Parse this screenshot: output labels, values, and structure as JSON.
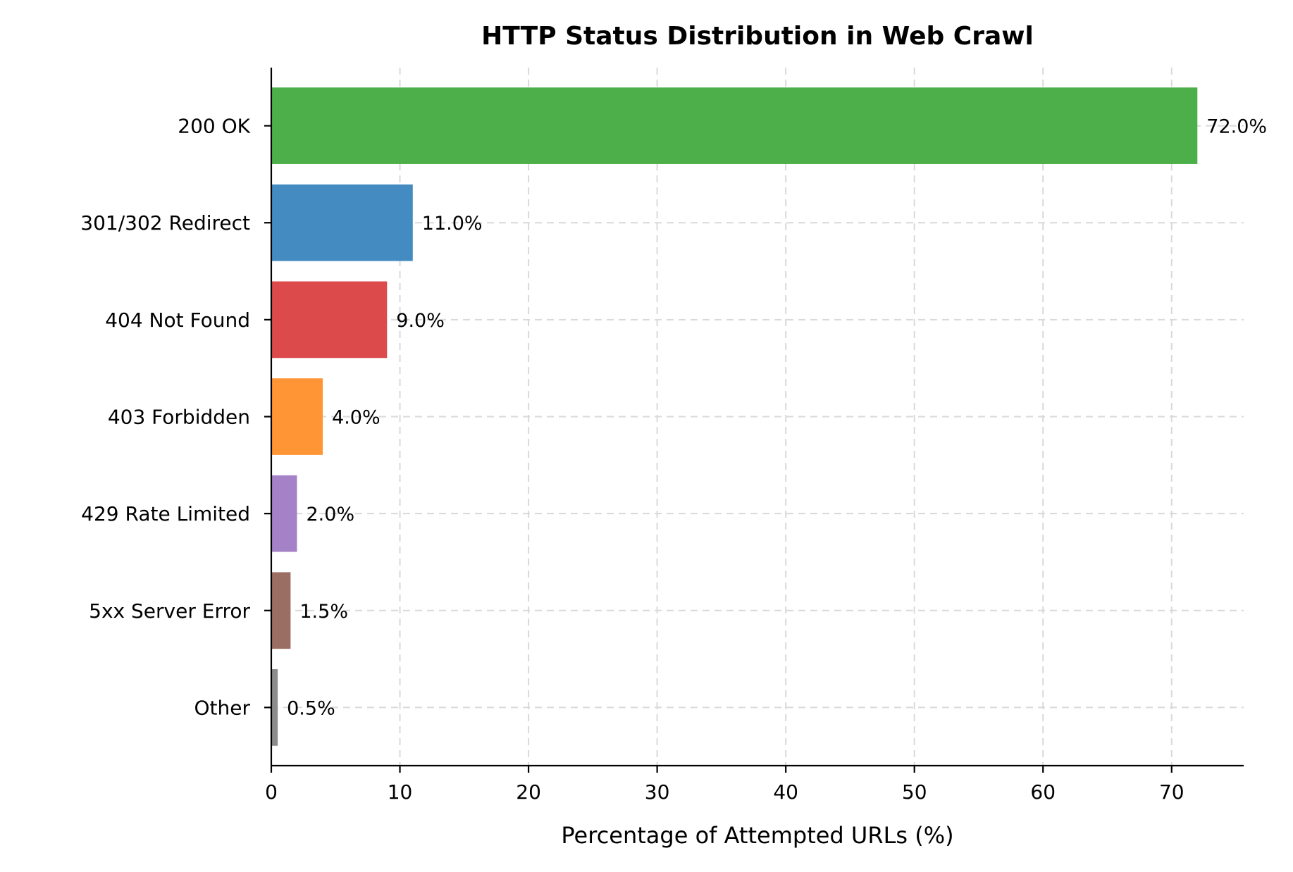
{
  "chart_data": {
    "type": "bar",
    "orientation": "horizontal",
    "title": "HTTP Status Distribution in Web Crawl",
    "xlabel": "Percentage of Attempted URLs (%)",
    "ylabel": "",
    "categories": [
      "200 OK",
      "301/302 Redirect",
      "404 Not Found",
      "403 Forbidden",
      "429 Rate Limited",
      "5xx Server Error",
      "Other"
    ],
    "values": [
      72.0,
      11.0,
      9.0,
      4.0,
      2.0,
      1.5,
      0.5
    ],
    "value_labels": [
      "72.0%",
      "11.0%",
      "9.0%",
      "4.0%",
      "2.0%",
      "1.5%",
      "0.5%"
    ],
    "colors": [
      "#4daf4a",
      "#438bc1",
      "#dc4a4c",
      "#ff9535",
      "#a582c7",
      "#9b6e64",
      "#8c8c8c"
    ],
    "xlim": [
      0,
      75.6
    ],
    "xticks": [
      0,
      10,
      20,
      30,
      40,
      50,
      60,
      70
    ],
    "xtick_labels": [
      "0",
      "10",
      "20",
      "30",
      "40",
      "50",
      "60",
      "70"
    ],
    "grid": true,
    "legend": "none"
  }
}
